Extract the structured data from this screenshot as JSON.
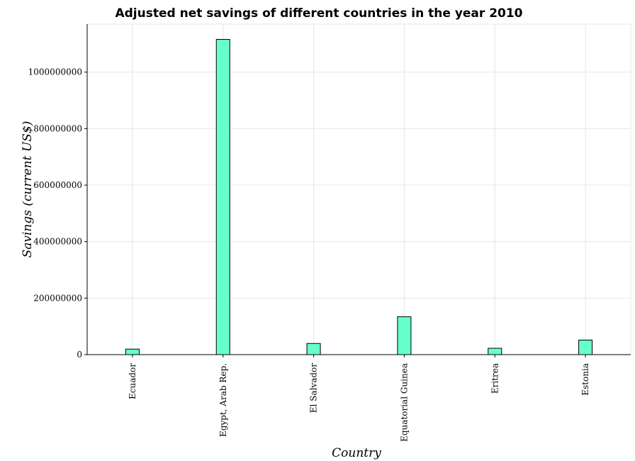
{
  "chart_data": {
    "type": "bar",
    "title": "Adjusted net savings of different countries in the year 2010",
    "xlabel": "Country",
    "ylabel": "Savings (current US$)",
    "categories": [
      "Ecuador",
      "Egypt, Arab Rep.",
      "El Salvador",
      "Equatorial Guinea",
      "Eritrea",
      "Estonia"
    ],
    "values": [
      19500000,
      1116000000,
      39500000,
      134000000,
      22500000,
      51500000
    ],
    "yticks": [
      0,
      200000000,
      400000000,
      600000000,
      800000000,
      1000000000
    ],
    "ytick_labels": [
      "0",
      "200000000",
      "400000000",
      "600000000",
      "800000000",
      "1000000000"
    ],
    "ylim": [
      0,
      1170000000
    ],
    "grid": true,
    "colors": {
      "bar_fill": "#66ffcc",
      "bar_stroke": "#000000",
      "grid": "#e6e6e6"
    }
  }
}
